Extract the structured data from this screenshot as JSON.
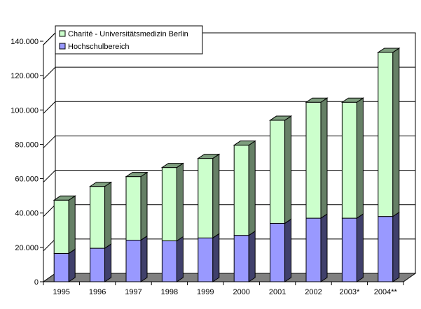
{
  "chart_data": {
    "type": "bar",
    "stacked": true,
    "three_d": true,
    "categories": [
      "1995",
      "1996",
      "1997",
      "1998",
      "1999",
      "2000",
      "2001",
      "2002",
      "2003*",
      "2004**"
    ],
    "series": [
      {
        "name": "Hochschulbereich",
        "values": [
          16500,
          19500,
          24200,
          23800,
          25500,
          27000,
          34000,
          37000,
          37000,
          38000
        ],
        "color": "#9999ff"
      },
      {
        "name": "Charité - Universitätsmedizin Berlin",
        "values": [
          31000,
          36000,
          37000,
          42700,
          46300,
          52500,
          60000,
          67500,
          67500,
          95500
        ],
        "color": "#ccffcc"
      }
    ],
    "y_ticks": [
      "0",
      "20.000",
      "40.000",
      "60.000",
      "80.000",
      "100.000",
      "120.000",
      "140.000"
    ],
    "ylim": [
      0,
      140000
    ],
    "grid": true,
    "legend": {
      "position": "top-left",
      "order": [
        "Charité - Universitätsmedizin Berlin",
        "Hochschulbereich"
      ]
    },
    "title": "",
    "xlabel": "",
    "ylabel": ""
  }
}
